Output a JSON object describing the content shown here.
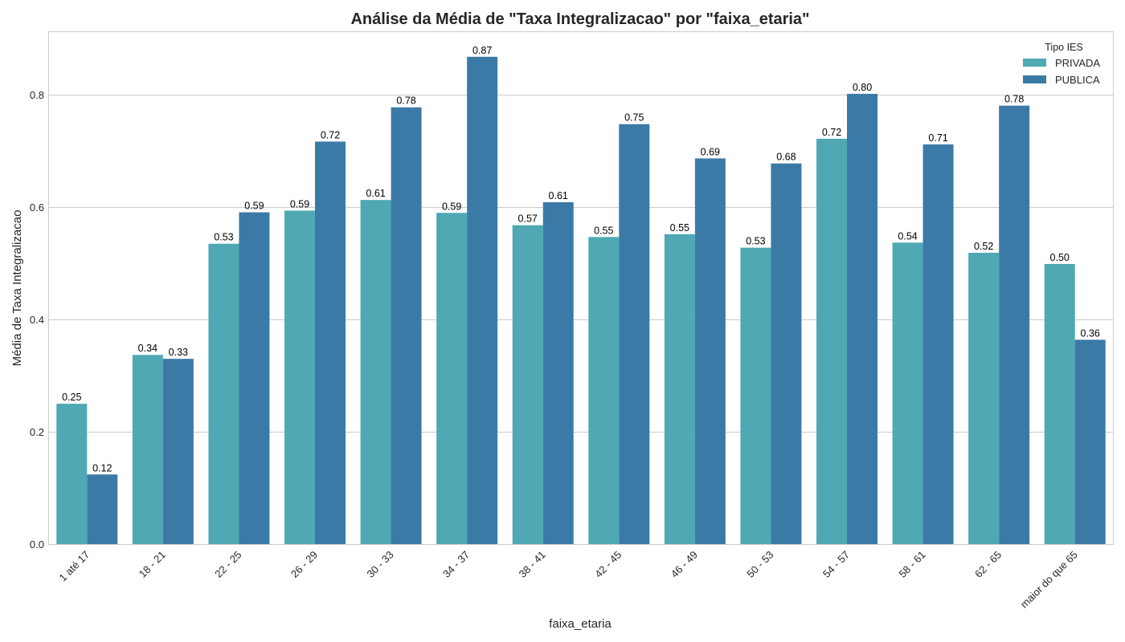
{
  "chart_data": {
    "type": "bar",
    "title": "Análise da Média de \"Taxa Integralizacao\" por \"faixa_etaria\"",
    "xlabel": "faixa_etaria",
    "ylabel": "Média de Taxa Integralizacao",
    "ylim": [
      0,
      0.912
    ],
    "yticks": [
      "0.0",
      "0.2",
      "0.4",
      "0.6",
      "0.8"
    ],
    "grid": "horizontal",
    "legend": {
      "title": "Tipo IES",
      "placement": "top-right"
    },
    "categories": [
      "1 até 17",
      "18 - 21",
      "22 - 25",
      "26 - 29",
      "30 - 33",
      "34 - 37",
      "38 - 41",
      "42 - 45",
      "46 - 49",
      "50 - 53",
      "54 - 57",
      "58 - 61",
      "62 - 65",
      "maior do que 65"
    ],
    "series": [
      {
        "name": "PRIVADA",
        "color": "#4fa8b3",
        "values": [
          0.25,
          0.337,
          0.535,
          0.594,
          0.613,
          0.59,
          0.568,
          0.547,
          0.552,
          0.528,
          0.722,
          0.537,
          0.519,
          0.499
        ],
        "labels": [
          "0.25",
          "0.34",
          "0.53",
          "0.59",
          "0.61",
          "0.59",
          "0.57",
          "0.55",
          "0.55",
          "0.53",
          "0.72",
          "0.54",
          "0.52",
          "0.50"
        ]
      },
      {
        "name": "PUBLICA",
        "color": "#3b7aa7",
        "values": [
          0.124,
          0.33,
          0.591,
          0.717,
          0.778,
          0.868,
          0.609,
          0.748,
          0.687,
          0.678,
          0.802,
          0.712,
          0.781,
          0.364
        ],
        "labels": [
          "0.12",
          "0.33",
          "0.59",
          "0.72",
          "0.78",
          "0.87",
          "0.61",
          "0.75",
          "0.69",
          "0.68",
          "0.80",
          "0.71",
          "0.78",
          "0.36"
        ]
      }
    ]
  }
}
